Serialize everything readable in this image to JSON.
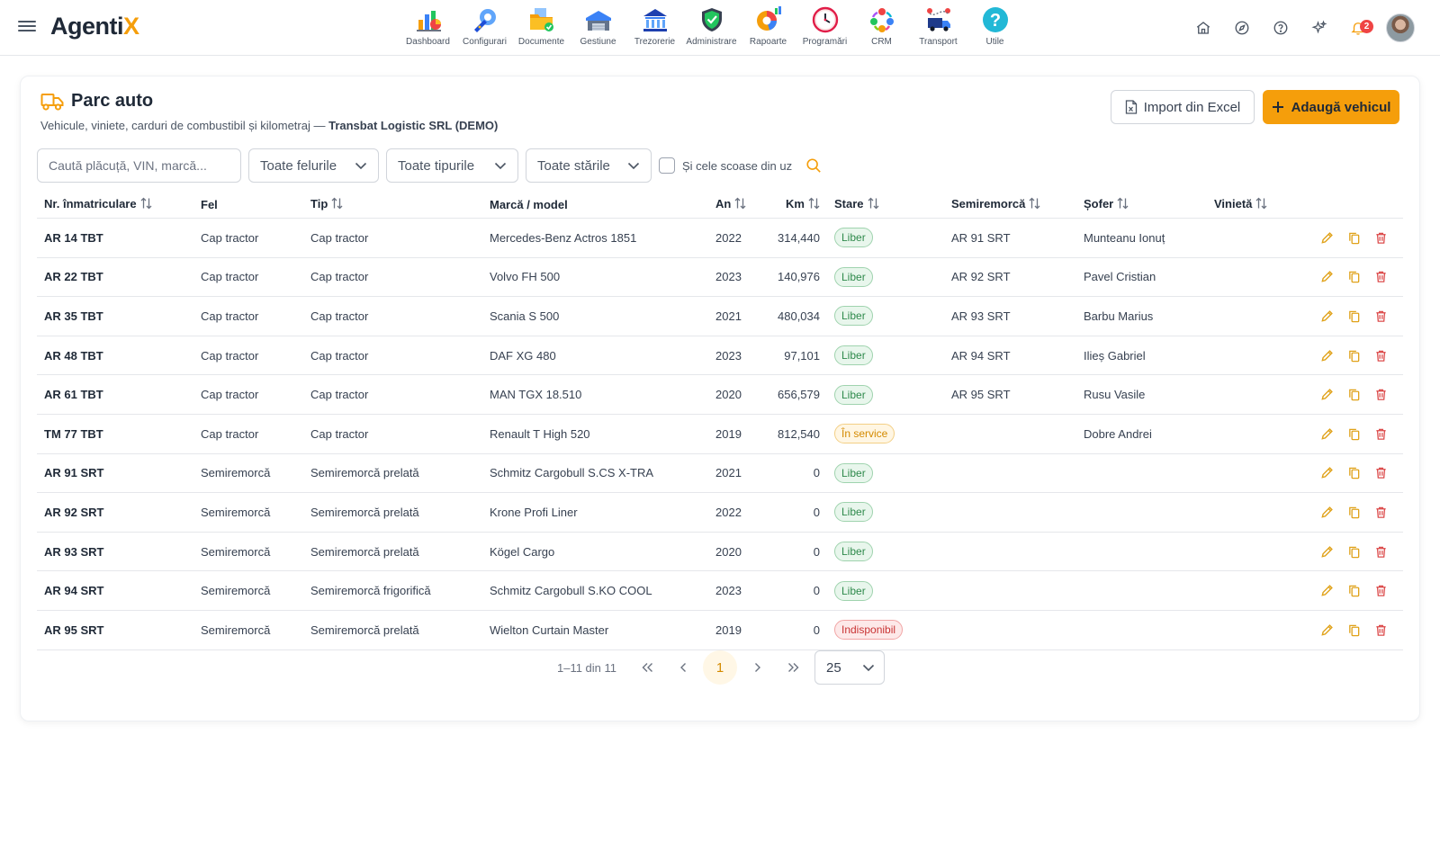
{
  "app": {
    "logo_main": "Agenti",
    "logo_accent": "X"
  },
  "modules": [
    {
      "label": "Dashboard",
      "icon": "dashboard-icon"
    },
    {
      "label": "Configurari",
      "icon": "wrench-gear-icon"
    },
    {
      "label": "Documente",
      "icon": "documents-folder-icon"
    },
    {
      "label": "Gestiune",
      "icon": "warehouse-icon"
    },
    {
      "label": "Trezorerie",
      "icon": "bank-icon"
    },
    {
      "label": "Administrare",
      "icon": "shield-check-icon"
    },
    {
      "label": "Rapoarte",
      "icon": "reports-pie-icon"
    },
    {
      "label": "Programări",
      "icon": "clock-icon"
    },
    {
      "label": "CRM",
      "icon": "crm-people-icon"
    },
    {
      "label": "Transport",
      "icon": "truck-route-icon"
    },
    {
      "label": "Utile",
      "icon": "help-circle-icon"
    }
  ],
  "toolbar": {
    "notifications_count": "2"
  },
  "page": {
    "title": "Parc auto",
    "subtitle": "Vehicule, viniete, carduri de combustibil și kilometraj —",
    "company": "Transbat Logistic SRL (DEMO)",
    "import_label": "Import din Excel",
    "add_label": "Adaugă vehicul"
  },
  "filters": {
    "search_placeholder": "Caută plăcuță, VIN, marcă...",
    "fel": "Toate felurile",
    "tip": "Toate tipurile",
    "stare": "Toate stările",
    "checkbox_label": "Și cele scoase din uz"
  },
  "table": {
    "headers": {
      "plate": "Nr. înmatriculare",
      "fel": "Fel",
      "tip": "Tip",
      "marca": "Marcă / model",
      "an": "An",
      "km": "Km",
      "stare": "Stare",
      "semi": "Semiremorcă",
      "sofer": "Șofer",
      "vinieta": "Vinietă"
    },
    "rows": [
      {
        "plate": "AR 14 TBT",
        "fel": "Cap tractor",
        "tip": "Cap tractor",
        "marca": "Mercedes-Benz Actros 1851",
        "an": "2022",
        "km": "314,440",
        "stare": "Liber",
        "stare_kind": "liber",
        "semi": "AR 91 SRT",
        "sofer": "Munteanu Ionuț",
        "vinieta": ""
      },
      {
        "plate": "AR 22 TBT",
        "fel": "Cap tractor",
        "tip": "Cap tractor",
        "marca": "Volvo FH 500",
        "an": "2023",
        "km": "140,976",
        "stare": "Liber",
        "stare_kind": "liber",
        "semi": "AR 92 SRT",
        "sofer": "Pavel Cristian",
        "vinieta": ""
      },
      {
        "plate": "AR 35 TBT",
        "fel": "Cap tractor",
        "tip": "Cap tractor",
        "marca": "Scania S 500",
        "an": "2021",
        "km": "480,034",
        "stare": "Liber",
        "stare_kind": "liber",
        "semi": "AR 93 SRT",
        "sofer": "Barbu Marius",
        "vinieta": ""
      },
      {
        "plate": "AR 48 TBT",
        "fel": "Cap tractor",
        "tip": "Cap tractor",
        "marca": "DAF XG 480",
        "an": "2023",
        "km": "97,101",
        "stare": "Liber",
        "stare_kind": "liber",
        "semi": "AR 94 SRT",
        "sofer": "Ilieș Gabriel",
        "vinieta": ""
      },
      {
        "plate": "AR 61 TBT",
        "fel": "Cap tractor",
        "tip": "Cap tractor",
        "marca": "MAN TGX 18.510",
        "an": "2020",
        "km": "656,579",
        "stare": "Liber",
        "stare_kind": "liber",
        "semi": "AR 95 SRT",
        "sofer": "Rusu Vasile",
        "vinieta": ""
      },
      {
        "plate": "TM 77 TBT",
        "fel": "Cap tractor",
        "tip": "Cap tractor",
        "marca": "Renault T High 520",
        "an": "2019",
        "km": "812,540",
        "stare": "În service",
        "stare_kind": "service",
        "semi": "",
        "sofer": "Dobre Andrei",
        "vinieta": ""
      },
      {
        "plate": "AR 91 SRT",
        "fel": "Semiremorcă",
        "tip": "Semiremorcă prelată",
        "marca": "Schmitz Cargobull S.CS X-TRA",
        "an": "2021",
        "km": "0",
        "stare": "Liber",
        "stare_kind": "liber",
        "semi": "",
        "sofer": "",
        "vinieta": ""
      },
      {
        "plate": "AR 92 SRT",
        "fel": "Semiremorcă",
        "tip": "Semiremorcă prelată",
        "marca": "Krone Profi Liner",
        "an": "2022",
        "km": "0",
        "stare": "Liber",
        "stare_kind": "liber",
        "semi": "",
        "sofer": "",
        "vinieta": ""
      },
      {
        "plate": "AR 93 SRT",
        "fel": "Semiremorcă",
        "tip": "Semiremorcă prelată",
        "marca": "Kögel Cargo",
        "an": "2020",
        "km": "0",
        "stare": "Liber",
        "stare_kind": "liber",
        "semi": "",
        "sofer": "",
        "vinieta": ""
      },
      {
        "plate": "AR 94 SRT",
        "fel": "Semiremorcă",
        "tip": "Semiremorcă frigorifică",
        "marca": "Schmitz Cargobull S.KO COOL",
        "an": "2023",
        "km": "0",
        "stare": "Liber",
        "stare_kind": "liber",
        "semi": "",
        "sofer": "",
        "vinieta": ""
      },
      {
        "plate": "AR 95 SRT",
        "fel": "Semiremorcă",
        "tip": "Semiremorcă prelată",
        "marca": "Wielton Curtain Master",
        "an": "2019",
        "km": "0",
        "stare": "Indisponibil",
        "stare_kind": "indisp",
        "semi": "",
        "sofer": "",
        "vinieta": ""
      }
    ]
  },
  "pagination": {
    "range": "1–11 din 11",
    "current": "1",
    "page_size": "25"
  },
  "colors": {
    "accent": "#f59e0b",
    "edit": "#e0a21a",
    "delete": "#dc4b4b"
  }
}
